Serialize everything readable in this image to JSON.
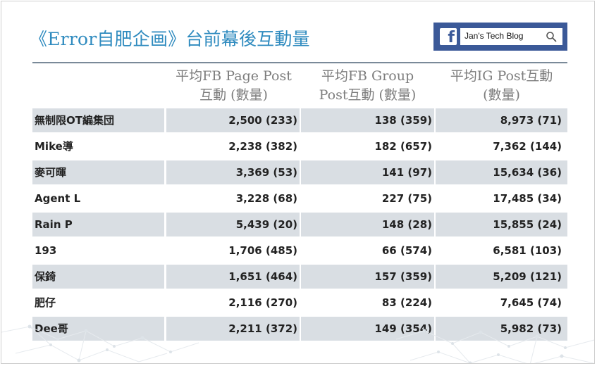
{
  "title": "《Error自肥企画》台前幕後互動量",
  "brand": {
    "name": "Jan's Tech Blog",
    "fb_letter": "f",
    "icon": "search-icon",
    "colors": {
      "background": "#3b5998"
    }
  },
  "table": {
    "headers": [
      {
        "line1": "平均FB Page Post",
        "line2": "互動 (數量)"
      },
      {
        "line1": "平均FB Group",
        "line2": "Post互動 (數量)"
      },
      {
        "line1": "平均IG Post互動",
        "line2": "(數量)"
      }
    ],
    "rows": [
      {
        "name": "無制限OT編集団",
        "fb_page": "2,500 (233)",
        "fb_group": "138 (359)",
        "ig": "8,973 (71)"
      },
      {
        "name": "Mike導",
        "fb_page": "2,238 (382)",
        "fb_group": "182 (657)",
        "ig": "7,362 (144)"
      },
      {
        "name": "麥可暉",
        "fb_page": "3,369 (53)",
        "fb_group": "141 (97)",
        "ig": "15,634 (36)"
      },
      {
        "name": "Agent L",
        "fb_page": "3,228 (68)",
        "fb_group": "227 (75)",
        "ig": "17,485 (34)"
      },
      {
        "name": "Rain P",
        "fb_page": "5,439 (20)",
        "fb_group": "148 (28)",
        "ig": "15,855 (24)"
      },
      {
        "name": "193",
        "fb_page": "1,706 (485)",
        "fb_group": "66 (574)",
        "ig": "6,581 (103)"
      },
      {
        "name": "保錡",
        "fb_page": "1,651 (464)",
        "fb_group": "157 (359)",
        "ig": "5,209 (121)"
      },
      {
        "name": "肥仔",
        "fb_page": "2,116 (270)",
        "fb_group": "83 (224)",
        "ig": "7,645 (74)"
      },
      {
        "name": "Dee哥",
        "fb_page": "2,211 (372)",
        "fb_group": "149 (354)",
        "ig": "5,982 (73)"
      }
    ]
  },
  "colors": {
    "title": "#2f8bbf",
    "row_shade": "#d9dee3",
    "header_text": "#7d7d7d"
  }
}
